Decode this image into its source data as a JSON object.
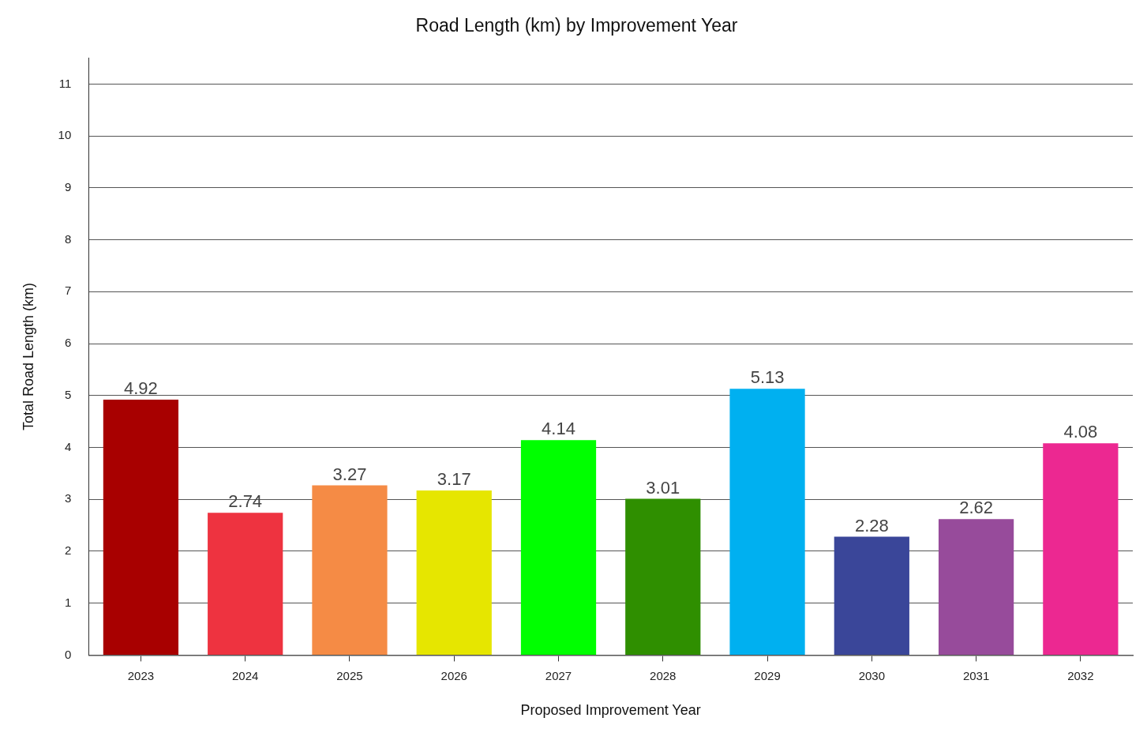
{
  "chart_data": {
    "type": "bar",
    "title": "Road Length (km) by Improvement Year",
    "xlabel": "Proposed Improvement Year",
    "ylabel": "Total Road Length (km)",
    "categories": [
      "2023",
      "2024",
      "2025",
      "2026",
      "2027",
      "2028",
      "2029",
      "2030",
      "2031",
      "2032"
    ],
    "values": [
      4.92,
      2.74,
      3.27,
      3.17,
      4.14,
      3.01,
      5.13,
      2.28,
      2.62,
      4.08
    ],
    "colors": [
      "#a80000",
      "#ee3340",
      "#f58b45",
      "#e6e600",
      "#00ff00",
      "#2f8f00",
      "#00b0f0",
      "#3a4699",
      "#974b9b",
      "#ec2891"
    ],
    "ylim": [
      0,
      11.5
    ],
    "yticks": [
      0,
      1,
      2,
      3,
      4,
      5,
      6,
      7,
      8,
      9,
      10,
      11
    ],
    "grid": "y",
    "legend": false,
    "data_labels": true
  }
}
